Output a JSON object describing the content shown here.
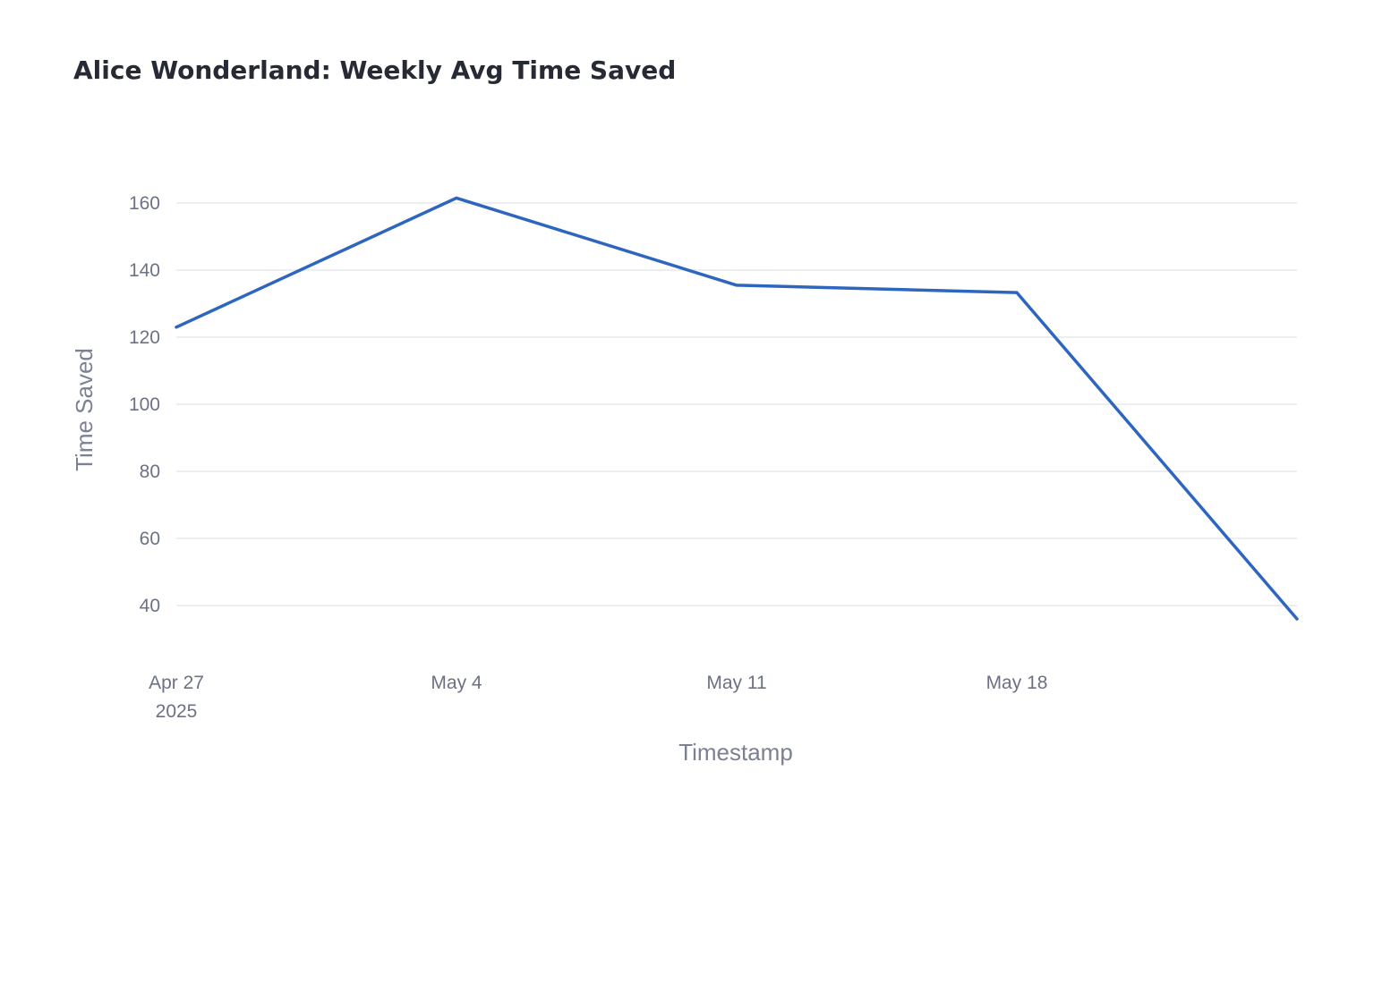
{
  "chart_data": {
    "type": "line",
    "title": "Alice Wonderland: Weekly Avg Time Saved",
    "xlabel": "Timestamp",
    "ylabel": "Time Saved",
    "x": [
      "2025-04-27",
      "2025-05-04",
      "2025-05-11",
      "2025-05-18",
      "2025-05-25"
    ],
    "series": [
      {
        "values": [
          123,
          161.5,
          135.5,
          133.3,
          36
        ]
      }
    ],
    "xlim": [
      "2025-04-27",
      "2025-05-25"
    ],
    "ylim": [
      28,
      172
    ],
    "x_ticks": [
      {
        "value": "2025-04-27",
        "label": "Apr 27",
        "sublabel": "2025"
      },
      {
        "value": "2025-05-04",
        "label": "May 4"
      },
      {
        "value": "2025-05-11",
        "label": "May 11"
      },
      {
        "value": "2025-05-18",
        "label": "May 18"
      }
    ],
    "y_ticks": [
      40,
      60,
      80,
      100,
      120,
      140,
      160
    ],
    "grid": true,
    "legend": "none",
    "colors": {
      "line": "#2e66bf",
      "grid": "#e6e8ee",
      "text": "#6c7284",
      "title": "#262a35"
    }
  }
}
